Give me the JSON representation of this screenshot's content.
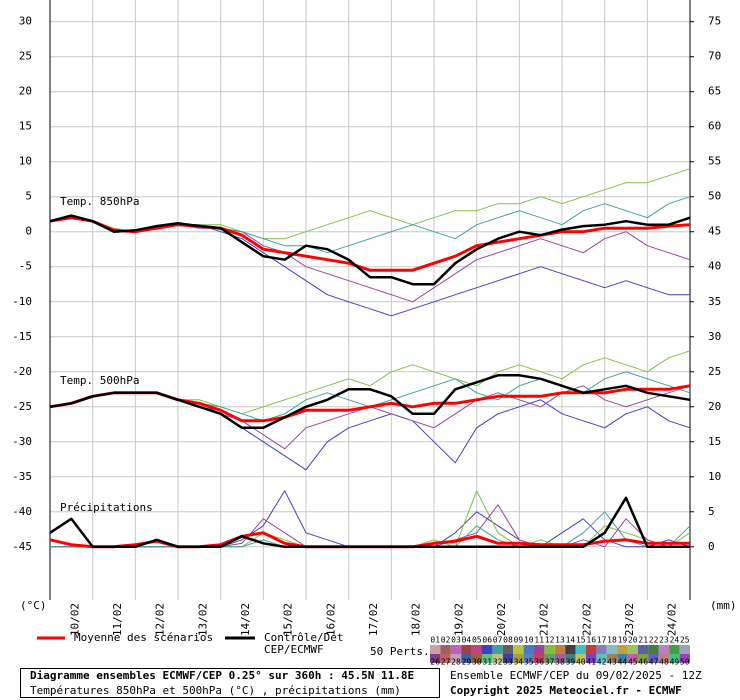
{
  "chart_data": {
    "type": "line",
    "title": "Diagramme ensembles ECMWF/CEP 0.25° sur 360h : 45.5N 11.8E",
    "subtitle": "Températures 850hPa et 500hPa (°C) , précipitations (mm)",
    "run": "Ensemble ECMWF/CEP du 09/02/2025 - 12Z",
    "copyright": "Copyright 2025 Meteociel.fr - ECMWF",
    "y_label": "(°C)",
    "y2_label": "(mm)",
    "panel_labels": {
      "t850": "Temp. 850hPa",
      "t500": "Temp. 500hPa",
      "precip": "Précipitations"
    },
    "x": [
      0,
      12,
      24,
      36,
      48,
      60,
      72,
      84,
      96,
      108,
      120,
      132,
      144,
      156,
      168,
      180,
      192,
      204,
      216,
      228,
      240,
      252,
      264,
      276,
      288,
      300,
      312,
      324,
      336,
      348,
      360
    ],
    "xlim": [
      0,
      360
    ],
    "xticks": [
      {
        "value": 24,
        "label": "10/02"
      },
      {
        "value": 48,
        "label": "11/02"
      },
      {
        "value": 72,
        "label": "12/02"
      },
      {
        "value": 96,
        "label": "13/02"
      },
      {
        "value": 120,
        "label": "14/02"
      },
      {
        "value": 144,
        "label": "15/02"
      },
      {
        "value": 168,
        "label": "16/02"
      },
      {
        "value": 192,
        "label": "17/02"
      },
      {
        "value": 216,
        "label": "18/02"
      },
      {
        "value": 240,
        "label": "19/02"
      },
      {
        "value": 264,
        "label": "20/02"
      },
      {
        "value": 288,
        "label": "21/02"
      },
      {
        "value": 312,
        "label": "22/02"
      },
      {
        "value": 336,
        "label": "23/02"
      },
      {
        "value": 360,
        "label": "24/02"
      }
    ],
    "ylim": [
      -52.6,
      33.1
    ],
    "yticks": [
      30,
      25,
      20,
      15,
      10,
      5,
      0,
      -5,
      -10,
      -15,
      -20,
      -25,
      -30,
      -35,
      -40,
      -45
    ],
    "y2lim": [
      -7.6,
      78.1
    ],
    "y2ticks": [
      75,
      70,
      65,
      60,
      55,
      50,
      45,
      40,
      35,
      30,
      25,
      20,
      15,
      10,
      5,
      0
    ],
    "grid": true,
    "series": [
      {
        "name": "Moyenne des scénarios",
        "color": "#ff0000",
        "t850": [
          1.5,
          2,
          1.5,
          0.2,
          0,
          0.5,
          1,
          0.8,
          0.5,
          -0.5,
          -2.5,
          -3,
          -3.5,
          -4,
          -4.5,
          -5.5,
          -5.5,
          -5.5,
          -4.5,
          -3.5,
          -2,
          -1.5,
          -1,
          -0.5,
          0,
          0,
          0.5,
          0.5,
          0.5,
          0.8,
          1
        ],
        "t500": [
          -25,
          -24.5,
          -23.5,
          -23,
          -23,
          -23,
          -24,
          -24.5,
          -25.5,
          -27,
          -27,
          -26.5,
          -25.5,
          -25.5,
          -25.5,
          -25,
          -24.5,
          -25,
          -24.5,
          -24.5,
          -24,
          -23.5,
          -23.5,
          -23.5,
          -23,
          -23,
          -23,
          -22.5,
          -22.5,
          -22.5,
          -22
        ],
        "precip": [
          1,
          0.3,
          0,
          0,
          0.3,
          0.8,
          0,
          0,
          0.3,
          1.5,
          2,
          0.5,
          0,
          0,
          0,
          0,
          0,
          0,
          0.5,
          0.8,
          1.5,
          0.5,
          0.5,
          0.3,
          0.3,
          0.3,
          0.8,
          1,
          0.5,
          0.5,
          0.5
        ]
      },
      {
        "name": "Contrôle/Det\nCEP/ECMWF",
        "color": "#000000",
        "t850": [
          1.5,
          2.3,
          1.5,
          0,
          0.2,
          0.8,
          1.2,
          0.8,
          0.5,
          -1.5,
          -3.5,
          -4,
          -2,
          -2.5,
          -4,
          -6.5,
          -6.5,
          -7.5,
          -7.5,
          -4.5,
          -2.5,
          -1,
          0,
          -0.5,
          0.3,
          0.8,
          1,
          1.5,
          1,
          1,
          2
        ],
        "t500": [
          -25,
          -24.5,
          -23.5,
          -23,
          -23,
          -23,
          -24,
          -25,
          -26,
          -28,
          -28,
          -26.5,
          -25,
          -24,
          -22.5,
          -22.5,
          -23.5,
          -26,
          -26,
          -22.5,
          -21.5,
          -20.5,
          -20.5,
          -21,
          -22,
          -23,
          -22.5,
          -22,
          -23,
          -23.5,
          -24
        ],
        "precip": [
          2,
          4,
          0,
          0,
          0,
          1,
          0,
          0,
          0,
          1.5,
          0.5,
          0,
          0,
          0,
          0,
          0,
          0,
          0,
          0,
          0,
          0,
          0,
          0,
          0,
          0,
          0,
          2,
          7,
          0,
          0,
          0
        ]
      }
    ],
    "members": [
      {
        "color": "#4040c0",
        "t850": [
          1.5,
          2,
          1.5,
          0,
          0,
          0.5,
          1,
          1,
          0,
          -1,
          -3,
          -5,
          -7,
          -9,
          -10,
          -11,
          -12,
          -11,
          -10,
          -9,
          -8,
          -7,
          -6,
          -5,
          -6,
          -7,
          -8,
          -7,
          -8,
          -9,
          -9
        ],
        "t500": [
          -25,
          -24.5,
          -23.5,
          -23,
          -23,
          -23,
          -24,
          -24.5,
          -26,
          -28,
          -30,
          -32,
          -34,
          -30,
          -28,
          -27,
          -26,
          -27,
          -30,
          -33,
          -28,
          -26,
          -25,
          -24,
          -26,
          -27,
          -28,
          -26,
          -25,
          -27,
          -28
        ],
        "precip": [
          0,
          0,
          0,
          0,
          0,
          0,
          0,
          0,
          0,
          1,
          3,
          8,
          2,
          1,
          0,
          0,
          0,
          0,
          0,
          2,
          5,
          3,
          1,
          0,
          2,
          4,
          1,
          0,
          0,
          1,
          0
        ]
      },
      {
        "color": "#80c040",
        "t850": [
          1.5,
          2,
          1.5,
          0.5,
          0,
          0.5,
          1,
          1,
          1,
          0,
          -1,
          -1,
          0,
          1,
          2,
          3,
          2,
          1,
          2,
          3,
          3,
          4,
          4,
          5,
          4,
          5,
          6,
          7,
          7,
          8,
          9
        ],
        "t500": [
          -25,
          -24.5,
          -23.5,
          -23,
          -23,
          -23,
          -24,
          -24,
          -25,
          -26,
          -25,
          -24,
          -23,
          -22,
          -21,
          -22,
          -20,
          -19,
          -20,
          -21,
          -22,
          -20,
          -19,
          -20,
          -21,
          -19,
          -18,
          -19,
          -20,
          -18,
          -17
        ],
        "precip": [
          0,
          0,
          0,
          0,
          0,
          0,
          0,
          0,
          0,
          0,
          2,
          1,
          0,
          0,
          0,
          0,
          0,
          0,
          1,
          0,
          8,
          2,
          0,
          1,
          0,
          0,
          3,
          2,
          1,
          0,
          2
        ]
      },
      {
        "color": "#a040a0",
        "t850": [
          1.5,
          2,
          1.5,
          0,
          0,
          0.5,
          1,
          0.5,
          0.5,
          0,
          -2,
          -3,
          -5,
          -6,
          -7,
          -8,
          -9,
          -10,
          -8,
          -6,
          -4,
          -3,
          -2,
          -1,
          -2,
          -3,
          -1,
          0,
          -2,
          -3,
          -4
        ],
        "t500": [
          -25,
          -24.5,
          -23.5,
          -23,
          -23,
          -23,
          -24,
          -25,
          -26,
          -27,
          -29,
          -31,
          -28,
          -27,
          -26,
          -25,
          -26,
          -27,
          -28,
          -26,
          -24,
          -23,
          -24,
          -25,
          -23,
          -22,
          -24,
          -25,
          -24,
          -23,
          -22
        ],
        "precip": [
          0,
          0,
          0,
          0,
          0,
          0,
          0,
          0,
          0,
          0.5,
          4,
          2,
          0,
          0,
          0,
          0,
          0,
          0,
          0,
          1,
          2,
          6,
          1,
          0,
          0,
          1,
          0,
          4,
          1,
          0,
          0
        ]
      },
      {
        "color": "#40a0a0",
        "t850": [
          1.5,
          2,
          1.5,
          0,
          0.3,
          0.5,
          1,
          1,
          0.5,
          0,
          -1,
          -2,
          -2,
          -3,
          -2,
          -1,
          0,
          1,
          0,
          -1,
          1,
          2,
          3,
          2,
          1,
          3,
          4,
          3,
          2,
          4,
          5
        ],
        "t500": [
          -25,
          -24.5,
          -23.5,
          -23,
          -23,
          -23,
          -24,
          -24.5,
          -25,
          -26,
          -27,
          -26,
          -24,
          -23,
          -24,
          -25,
          -24,
          -23,
          -22,
          -21,
          -23,
          -24,
          -22,
          -21,
          -22,
          -23,
          -21,
          -20,
          -21,
          -22,
          -23
        ],
        "precip": [
          0,
          0,
          0,
          0,
          0,
          0,
          0,
          0,
          0,
          0,
          1,
          0,
          0,
          0,
          0,
          0,
          0,
          0,
          0,
          0,
          3,
          1,
          0,
          0,
          0,
          2,
          5,
          1,
          0,
          0,
          3
        ]
      }
    ],
    "perturbations": {
      "label": "50 Perts.",
      "names": [
        "01",
        "02",
        "03",
        "04",
        "05",
        "06",
        "07",
        "08",
        "09",
        "10",
        "11",
        "12",
        "13",
        "14",
        "15",
        "16",
        "17",
        "18",
        "19",
        "20",
        "21",
        "22",
        "23",
        "24",
        "25",
        "26",
        "27",
        "28",
        "29",
        "30",
        "31",
        "32",
        "33",
        "34",
        "35",
        "36",
        "37",
        "38",
        "39",
        "40",
        "41",
        "42",
        "43",
        "44",
        "45",
        "46",
        "47",
        "48",
        "49",
        "50"
      ],
      "colors": [
        "#c8a0a0",
        "#a06060",
        "#c060c0",
        "#a04040",
        "#c04080",
        "#4040c0",
        "#40a0a0",
        "#606060",
        "#c0c040",
        "#4080c0",
        "#a040a0",
        "#80c040",
        "#c08040",
        "#404040",
        "#40c0c0",
        "#c04040",
        "#8080c0",
        "#80c0c0",
        "#c0a040",
        "#a0c060",
        "#6060a0",
        "#408040",
        "#c080c0",
        "#40a040",
        "#a0a0c0",
        "#804080",
        "#c06060",
        "#c0a0c0",
        "#4060a0",
        "#a06040",
        "#60c080",
        "#c0c080",
        "#4040a0",
        "#a0a040",
        "#6080c0",
        "#c04060",
        "#60a060",
        "#a060a0",
        "#408080",
        "#c0c060",
        "#8040c0",
        "#60c0c0",
        "#a08060",
        "#4080a0",
        "#c060a0",
        "#80a040",
        "#6060c0",
        "#c08080",
        "#40c080",
        "#a040c0"
      ]
    }
  }
}
